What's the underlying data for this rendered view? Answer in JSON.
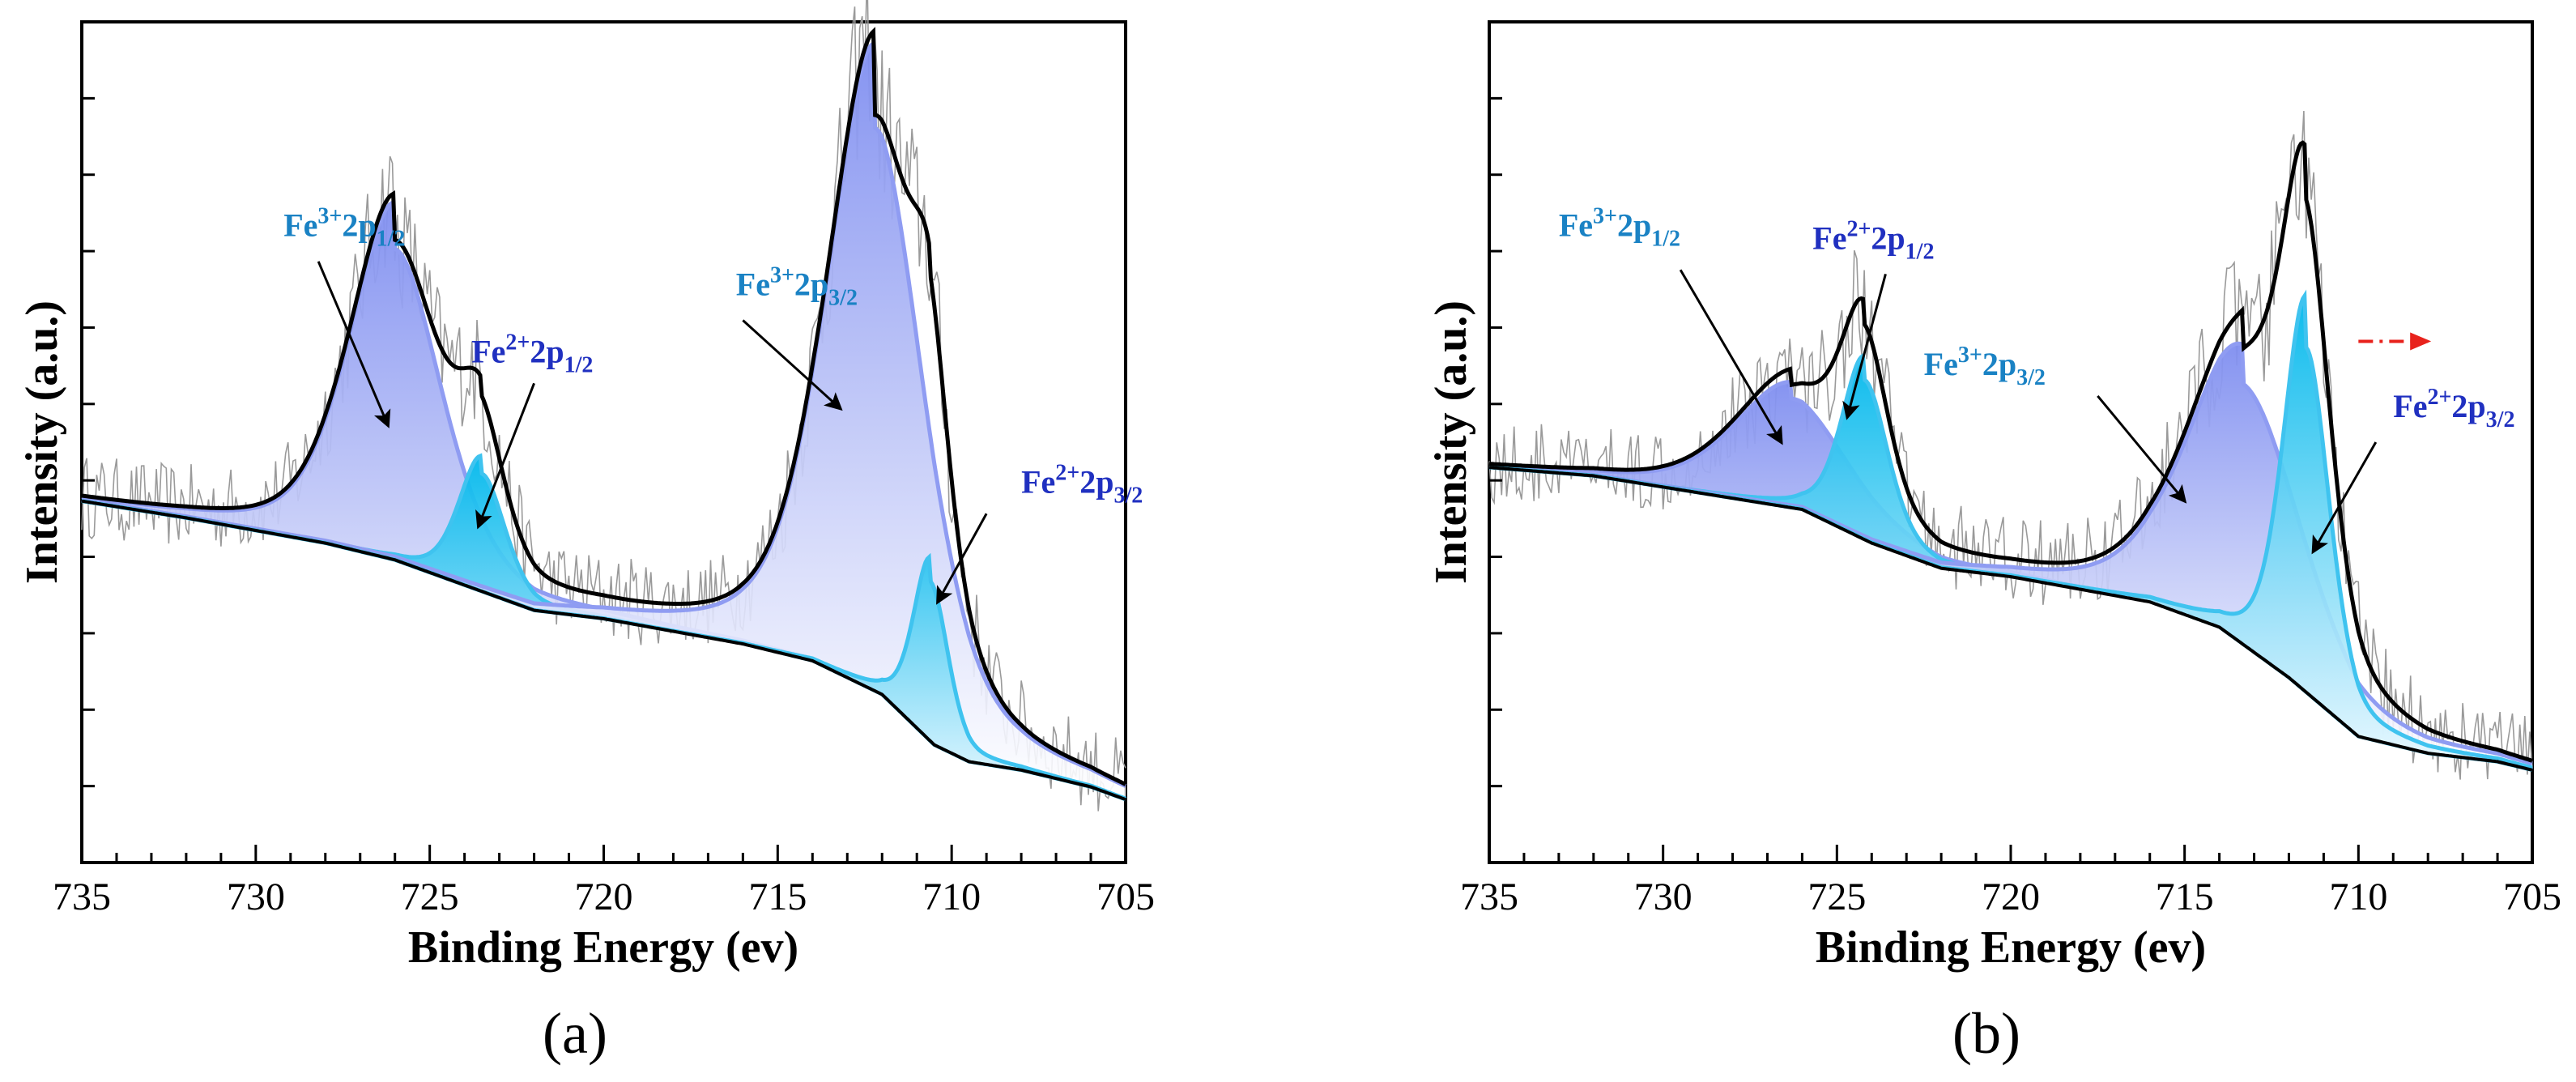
{
  "chart_data": [
    {
      "panel_label": "(a)",
      "type": "line",
      "xlabel": "Binding Energy (ev)",
      "ylabel": "Intensity (a.u.)",
      "xlim": [
        735,
        705
      ],
      "x_reversed": true,
      "ylim": [
        0,
        100
      ],
      "y_ticks_labeled": false,
      "x_ticks": [
        735,
        730,
        725,
        720,
        715,
        710,
        705
      ],
      "x_tick_labels": [
        "735",
        "730",
        "725",
        "720",
        "715",
        "710",
        "705"
      ],
      "background": [
        [
          735,
          43
        ],
        [
          732,
          41
        ],
        [
          728,
          38
        ],
        [
          726,
          36
        ],
        [
          724,
          33
        ],
        [
          722,
          30
        ],
        [
          720,
          29
        ],
        [
          716,
          26
        ],
        [
          714,
          24
        ],
        [
          712,
          20
        ],
        [
          710.5,
          14
        ],
        [
          709.5,
          12
        ],
        [
          708,
          11
        ],
        [
          706,
          9
        ],
        [
          705,
          7.5
        ]
      ],
      "peaks": [
        {
          "name": "Fe3+ 2p1/2",
          "center": 726.0,
          "height": 37,
          "width": 1.6,
          "color": "#7f8ef0"
        },
        {
          "name": "Fe2+ 2p1/2",
          "center": 723.5,
          "height": 14,
          "width": 0.8,
          "color": "#16b4ea"
        },
        {
          "name": "Fe3+ 2p3/2",
          "center": 712.2,
          "height": 67,
          "width": 1.7,
          "color": "#7f8ef0"
        },
        {
          "name": "Fe2+ 2p3/2",
          "center": 710.6,
          "height": 19,
          "width": 0.6,
          "color": "#16b4ea"
        }
      ],
      "labels": [
        {
          "id": "fe3-2p12",
          "text_base": "Fe",
          "sup": "3+",
          "mid": "2p",
          "sub": "1/2",
          "color": "#1a82c4",
          "tx": 729.2,
          "ty": 74.5,
          "ax0": 728.2,
          "ay0": 71.5,
          "ax1": 726.2,
          "ay1": 52
        },
        {
          "id": "fe2-2p12",
          "text_base": "Fe",
          "sup": "2+",
          "mid": "2p",
          "sub": "1/2",
          "color": "#2030c0",
          "tx": 723.8,
          "ty": 59.5,
          "ax0": 722.0,
          "ay0": 57,
          "ax1": 723.6,
          "ay1": 40
        },
        {
          "id": "fe3-2p32",
          "text_base": "Fe",
          "sup": "3+",
          "mid": "2p",
          "sub": "3/2",
          "color": "#1a82c4",
          "tx": 716.2,
          "ty": 67.5,
          "ax0": 716.0,
          "ay0": 64.5,
          "ax1": 713.2,
          "ay1": 54
        },
        {
          "id": "fe2-2p32",
          "text_base": "Fe",
          "sup": "2+",
          "mid": "2p",
          "sub": "3/2",
          "color": "#2030c0",
          "tx": 708.0,
          "ty": 44,
          "ax0": 709.0,
          "ay0": 41.5,
          "ax1": 710.4,
          "ay1": 31
        }
      ],
      "arrow_marker": null
    },
    {
      "panel_label": "(b)",
      "type": "line",
      "xlabel": "Binding Energy (ev)",
      "ylabel": "Intensity (a.u.)",
      "xlim": [
        735,
        705
      ],
      "x_reversed": true,
      "ylim": [
        0,
        100
      ],
      "y_ticks_labeled": false,
      "x_ticks": [
        735,
        730,
        725,
        720,
        715,
        710,
        705
      ],
      "x_tick_labels": [
        "735",
        "730",
        "725",
        "720",
        "715",
        "710",
        "705"
      ],
      "background": [
        [
          735,
          47
        ],
        [
          732,
          46
        ],
        [
          729,
          44
        ],
        [
          726,
          42
        ],
        [
          724,
          38
        ],
        [
          722,
          35
        ],
        [
          720,
          34
        ],
        [
          716,
          31
        ],
        [
          714,
          28
        ],
        [
          712,
          22
        ],
        [
          710,
          15
        ],
        [
          708,
          13
        ],
        [
          706,
          12
        ],
        [
          705,
          11
        ]
      ],
      "peaks": [
        {
          "name": "Fe3+ 2p1/2",
          "center": 726.3,
          "height": 13,
          "width": 2.0,
          "color": "#7f8ef0"
        },
        {
          "name": "Fe2+ 2p1/2",
          "center": 724.2,
          "height": 19,
          "width": 0.8,
          "color": "#16b4ea"
        },
        {
          "name": "Fe3+ 2p3/2",
          "center": 713.3,
          "height": 31,
          "width": 2.0,
          "color": "#7f8ef0"
        },
        {
          "name": "Fe2+ 2p3/2",
          "center": 711.5,
          "height": 41,
          "width": 0.8,
          "color": "#16b4ea"
        }
      ],
      "labels": [
        {
          "id": "fe3-2p12",
          "text_base": "Fe",
          "sup": "3+",
          "mid": "2p",
          "sub": "1/2",
          "color": "#1a82c4",
          "tx": 733.0,
          "ty": 74.5,
          "ax0": 729.5,
          "ay0": 70.5,
          "ax1": 726.6,
          "ay1": 50
        },
        {
          "id": "fe2-2p12",
          "text_base": "Fe",
          "sup": "2+",
          "mid": "2p",
          "sub": "1/2",
          "color": "#2030c0",
          "tx": 725.7,
          "ty": 73,
          "ax0": 723.6,
          "ay0": 70,
          "ax1": 724.7,
          "ay1": 53
        },
        {
          "id": "fe3-2p32",
          "text_base": "Fe",
          "sup": "3+",
          "mid": "2p",
          "sub": "3/2",
          "color": "#1a82c4",
          "tx": 722.5,
          "ty": 58,
          "ax0": 717.5,
          "ay0": 55.5,
          "ax1": 715.0,
          "ay1": 43
        },
        {
          "id": "fe2-2p32",
          "text_base": "Fe",
          "sup": "2+",
          "mid": "2p",
          "sub": "3/2",
          "color": "#2030c0",
          "tx": 709.0,
          "ty": 53,
          "ax0": 709.5,
          "ay0": 50,
          "ax1": 711.3,
          "ay1": 37
        }
      ],
      "arrow_marker": {
        "from": [
          710.0,
          62
        ],
        "to": [
          708.0,
          62
        ],
        "color": "#e8221c"
      }
    }
  ]
}
